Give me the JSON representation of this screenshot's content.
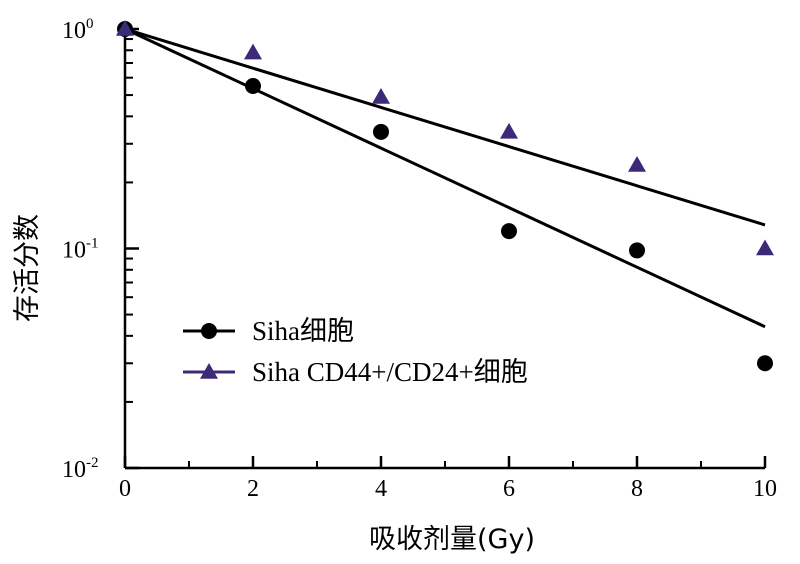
{
  "chart_data": {
    "type": "scatter",
    "xlabel": "吸收剂量(Gy)",
    "ylabel": "存活分数",
    "xlim": [
      0,
      10
    ],
    "ylim": [
      0.01,
      1
    ],
    "yscale": "log",
    "xticks": [
      0,
      2,
      4,
      6,
      8,
      10
    ],
    "xtick_labels": [
      "0",
      "2",
      "4",
      "6",
      "8",
      "10"
    ],
    "yticks": [
      {
        "value": 1,
        "base": "10",
        "exp": "0"
      },
      {
        "value": 0.1,
        "base": "10",
        "exp": "-1"
      },
      {
        "value": 0.01,
        "base": "10",
        "exp": "-2"
      }
    ],
    "legend_position": "bottom-left",
    "grid": false,
    "series": [
      {
        "name": "Siha细胞",
        "marker": "circle",
        "color": "#000000",
        "x": [
          0,
          2,
          4,
          6,
          8,
          10
        ],
        "y": [
          1.0,
          0.55,
          0.34,
          0.12,
          0.098,
          0.03
        ],
        "fit": {
          "x": [
            0,
            10
          ],
          "y": [
            1.0,
            0.044
          ]
        }
      },
      {
        "name": "Siha CD44+/CD24+细胞",
        "marker": "triangle",
        "color": "#3c2a78",
        "x": [
          0,
          2,
          4,
          6,
          8,
          10
        ],
        "y": [
          1.0,
          0.78,
          0.49,
          0.34,
          0.24,
          0.1
        ],
        "fit": {
          "x": [
            0,
            10
          ],
          "y": [
            1.0,
            0.128
          ]
        }
      }
    ]
  }
}
